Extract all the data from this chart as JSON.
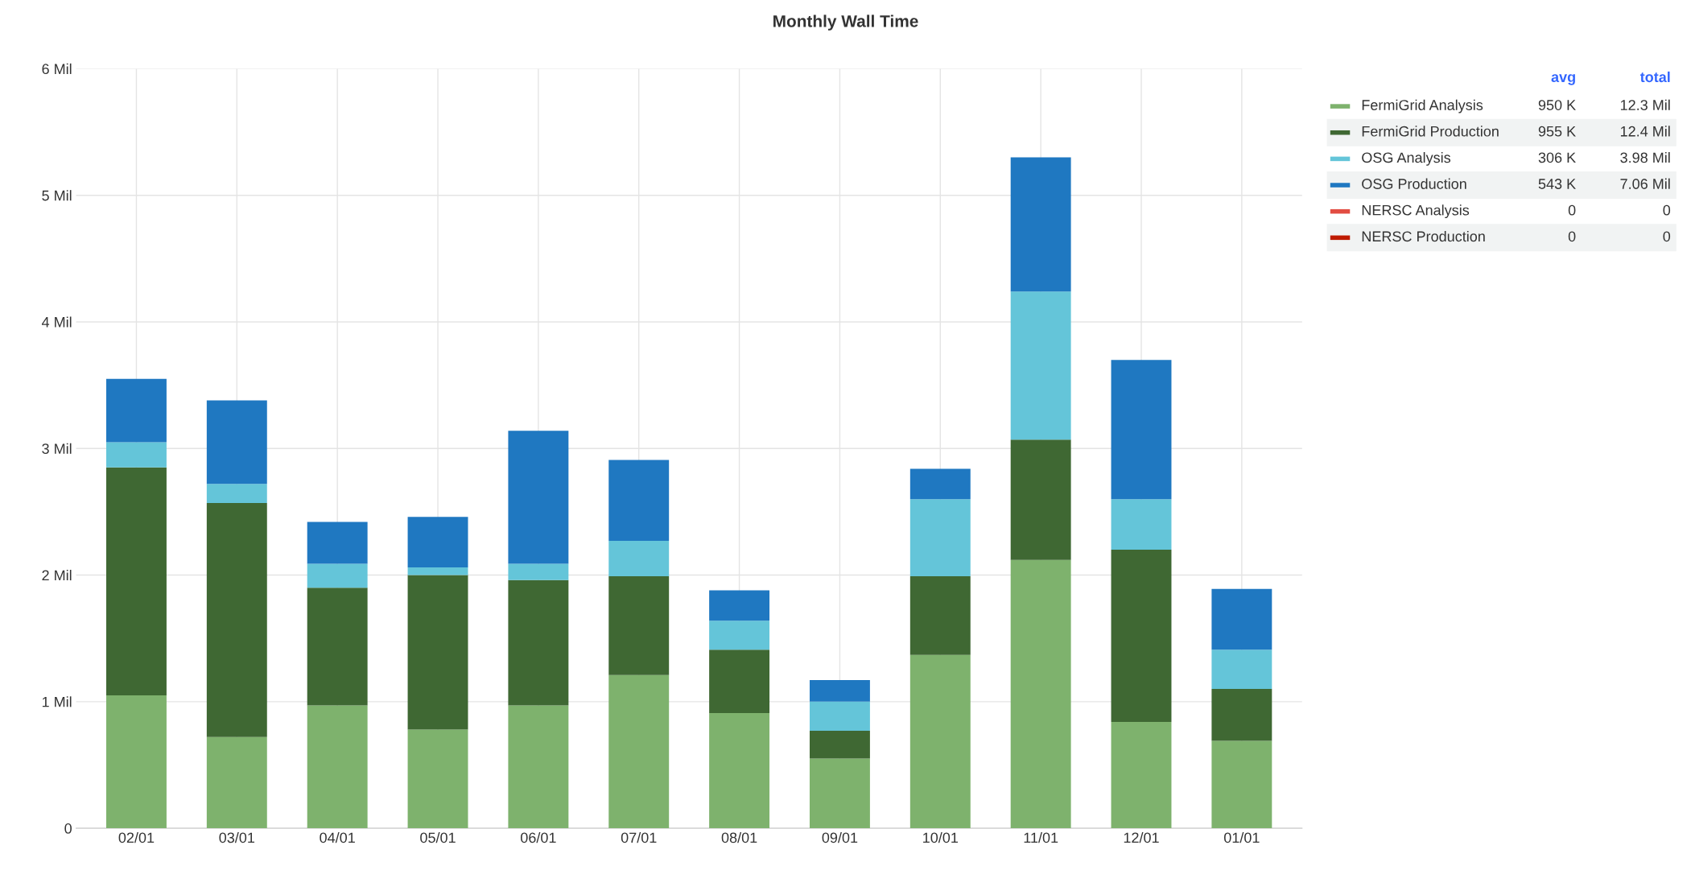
{
  "chart_data": {
    "type": "bar",
    "title": "Monthly Wall Time",
    "stacked": true,
    "categories": [
      "02/01",
      "03/01",
      "04/01",
      "05/01",
      "06/01",
      "07/01",
      "08/01",
      "09/01",
      "10/01",
      "11/01",
      "12/01",
      "01/01"
    ],
    "series": [
      {
        "name": "FermiGrid Analysis",
        "color": "#7eb26d",
        "values": [
          1.05,
          0.72,
          0.97,
          0.78,
          0.97,
          1.21,
          0.91,
          0.55,
          1.37,
          2.12,
          0.84,
          0.69
        ]
      },
      {
        "name": "FermiGrid Production",
        "color": "#3f6833",
        "values": [
          1.8,
          1.85,
          0.93,
          1.22,
          0.99,
          0.78,
          0.5,
          0.22,
          0.62,
          0.95,
          1.36,
          0.41
        ]
      },
      {
        "name": "OSG Analysis",
        "color": "#64c5d9",
        "values": [
          0.2,
          0.15,
          0.19,
          0.06,
          0.13,
          0.28,
          0.23,
          0.23,
          0.61,
          1.17,
          0.4,
          0.31
        ]
      },
      {
        "name": "OSG Production",
        "color": "#1f78c1",
        "values": [
          0.5,
          0.66,
          0.33,
          0.4,
          1.05,
          0.64,
          0.24,
          0.17,
          0.24,
          1.06,
          1.1,
          0.48
        ]
      },
      {
        "name": "NERSC Analysis",
        "color": "#e24d42",
        "values": [
          0,
          0,
          0,
          0,
          0,
          0,
          0,
          0,
          0,
          0,
          0,
          0
        ]
      },
      {
        "name": "NERSC Production",
        "color": "#bf1b00",
        "values": [
          0,
          0,
          0,
          0,
          0,
          0,
          0,
          0,
          0,
          0,
          0,
          0
        ]
      }
    ],
    "ylim": [
      0,
      6
    ],
    "yticks": [
      0,
      {
        "value": 1,
        "label": "1 Mil"
      },
      {
        "value": 2,
        "label": "2 Mil"
      },
      {
        "value": 3,
        "label": "3 Mil"
      },
      {
        "value": 4,
        "label": "4 Mil"
      },
      {
        "value": 5,
        "label": "5 Mil"
      },
      {
        "value": 6,
        "label": "6 Mil"
      }
    ],
    "grid": true,
    "legend": "right",
    "annotations": [
      "avg",
      "total",
      "950 K",
      "12.3 Mil",
      "955 K",
      "12.4 Mil",
      "306 K",
      "3.98 Mil",
      "543 K",
      "7.06 Mil",
      "0",
      "0",
      "0",
      "0"
    ]
  }
}
